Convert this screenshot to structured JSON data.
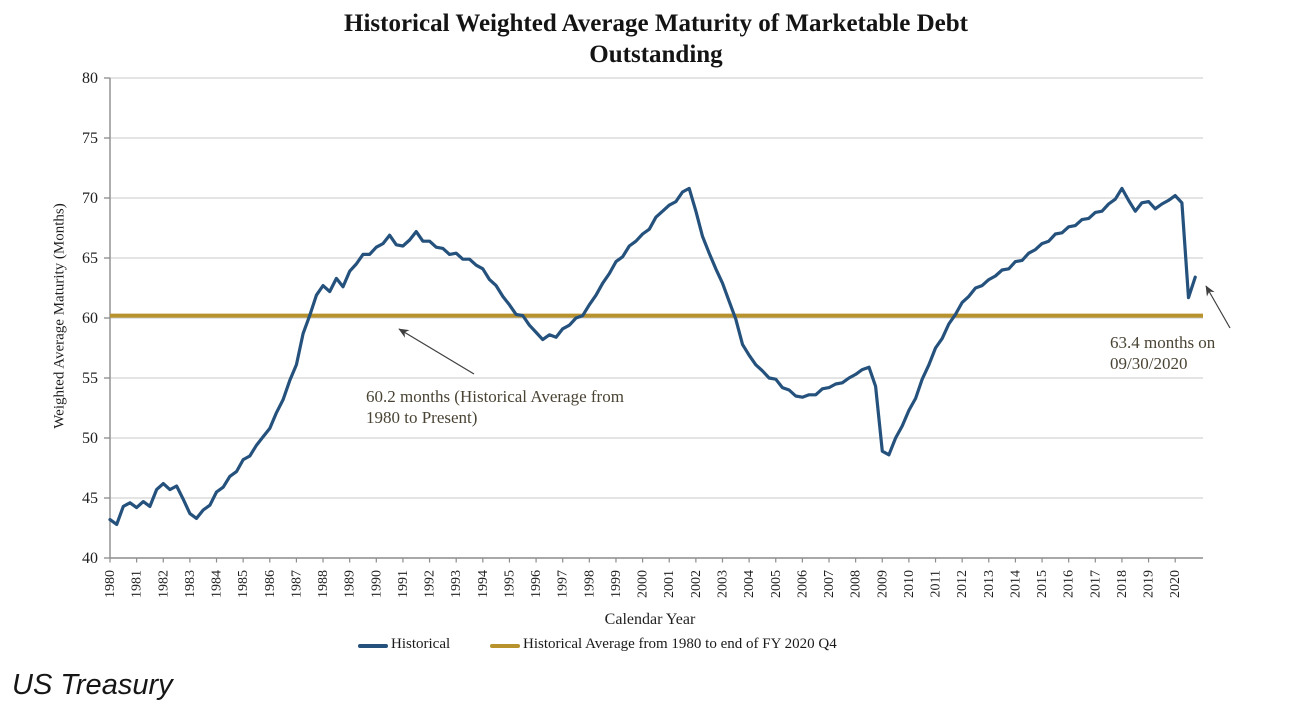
{
  "source_label": "US Treasury",
  "chart_data": {
    "type": "line",
    "title": "Historical Weighted Average Maturity of Marketable Debt Outstanding",
    "xlabel": "Calendar Year",
    "ylabel": "Weighted Average Maturity (Months)",
    "ylim": [
      40,
      80
    ],
    "grid": true,
    "legend_position": "bottom",
    "y_ticks": [
      80,
      75,
      70,
      65,
      60,
      55,
      50,
      45,
      40
    ],
    "x_ticks": [
      1980,
      1981,
      1982,
      1983,
      1984,
      1985,
      1986,
      1987,
      1988,
      1989,
      1990,
      1991,
      1992,
      1993,
      1994,
      1995,
      1996,
      1997,
      1998,
      1999,
      2000,
      2001,
      2002,
      2003,
      2004,
      2005,
      2006,
      2007,
      2008,
      2009,
      2010,
      2011,
      2012,
      2013,
      2014,
      2015,
      2016,
      2017,
      2018,
      2019,
      2020
    ],
    "annotations": {
      "average": {
        "text": "60.2 months (Historical Average from 1980 to Present)"
      },
      "latest": {
        "text": "63.4 months on 09/30/2020"
      }
    },
    "series": [
      {
        "name": "Historical",
        "color": "#25517D",
        "x_start": 1980.0,
        "x_step": 0.25,
        "x_end": 2020.75,
        "values": [
          43.2,
          42.8,
          44.3,
          44.6,
          44.2,
          44.7,
          44.3,
          45.7,
          46.2,
          45.7,
          46.0,
          44.9,
          43.7,
          43.3,
          44.0,
          44.4,
          45.5,
          45.9,
          46.8,
          47.2,
          48.2,
          48.5,
          49.4,
          50.1,
          50.8,
          52.1,
          53.2,
          54.8,
          56.1,
          58.7,
          60.2,
          61.9,
          62.7,
          62.2,
          63.3,
          62.6,
          63.9,
          64.5,
          65.3,
          65.3,
          65.9,
          66.2,
          66.9,
          66.1,
          66.0,
          66.5,
          67.2,
          66.4,
          66.4,
          65.9,
          65.8,
          65.3,
          65.4,
          64.9,
          64.9,
          64.4,
          64.1,
          63.2,
          62.7,
          61.8,
          61.1,
          60.3,
          60.2,
          59.4,
          58.8,
          58.2,
          58.6,
          58.4,
          59.1,
          59.4,
          60.0,
          60.2,
          61.1,
          61.9,
          62.9,
          63.7,
          64.7,
          65.1,
          66.0,
          66.4,
          67.0,
          67.4,
          68.4,
          68.9,
          69.4,
          69.7,
          70.5,
          70.8,
          68.9,
          66.8,
          65.4,
          64.1,
          62.9,
          61.4,
          59.9,
          57.8,
          56.9,
          56.1,
          55.6,
          55.0,
          54.9,
          54.2,
          54.0,
          53.5,
          53.4,
          53.6,
          53.6,
          54.1,
          54.2,
          54.5,
          54.6,
          55.0,
          55.3,
          55.7,
          55.9,
          54.3,
          48.9,
          48.6,
          50.0,
          51.0,
          52.3,
          53.3,
          54.9,
          56.1,
          57.5,
          58.3,
          59.5,
          60.3,
          61.3,
          61.8,
          62.5,
          62.7,
          63.2,
          63.5,
          64.0,
          64.1,
          64.7,
          64.8,
          65.4,
          65.7,
          66.2,
          66.4,
          67.0,
          67.1,
          67.6,
          67.7,
          68.2,
          68.3,
          68.8,
          68.9,
          69.5,
          69.9,
          70.8,
          69.8,
          68.9,
          69.6,
          69.7,
          69.1,
          69.5,
          69.8,
          70.2,
          69.6,
          61.7,
          63.4
        ]
      },
      {
        "name": "Historical Average from 1980 to end of FY 2020 Q4",
        "color": "#B8922D",
        "type": "hline",
        "value": 60.2
      }
    ]
  }
}
